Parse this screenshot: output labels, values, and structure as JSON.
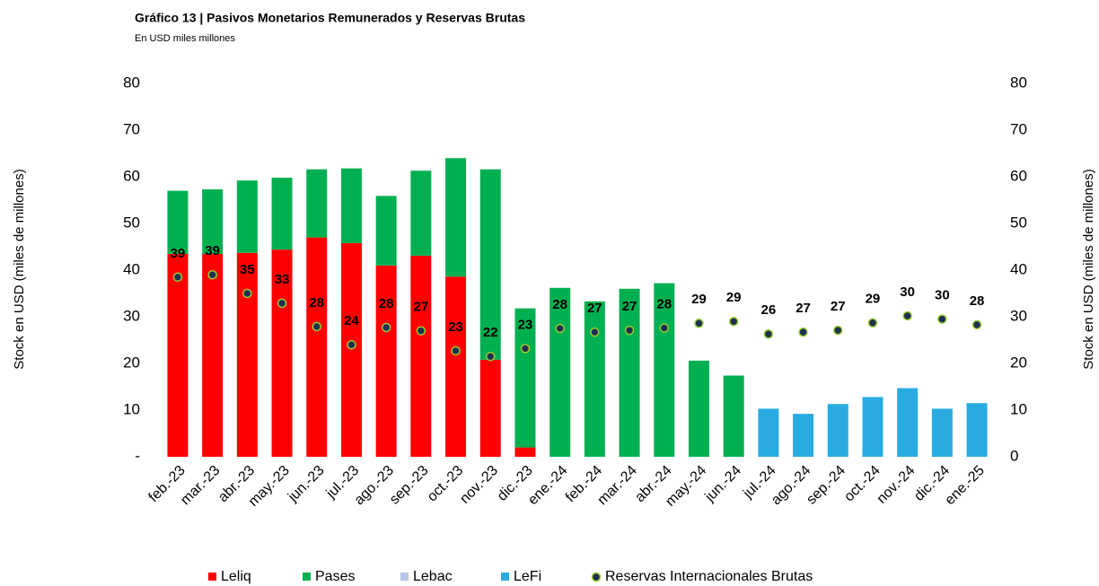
{
  "chart_data": {
    "type": "bar",
    "stacked": true,
    "title": "Gráfico 13 | Pasivos Monetarios Remunerados y Reservas Brutas",
    "subtitle": "En USD miles millones",
    "ylabel": "Stock en USD (miles de millones)",
    "y2label": "Stock en USD (miles de millones)",
    "categories": [
      "feb.-23",
      "mar.-23",
      "abr.-23",
      "may.-23",
      "jun.-23",
      "jul.-23",
      "ago.-23",
      "sep.-23",
      "oct.-23",
      "nov.-23",
      "dic.-23",
      "ene.-24",
      "feb.-24",
      "mar.-24",
      "abr.-24",
      "may.-24",
      "jun.-24",
      "jul.-24",
      "ago.-24",
      "sep.-24",
      "oct.-24",
      "nov.-24",
      "dic.-24",
      "ene.-25"
    ],
    "ylim": [
      0,
      80
    ],
    "yticks": [
      {
        "value": 0,
        "label": "-"
      },
      10,
      20,
      30,
      40,
      50,
      60,
      70,
      80
    ],
    "y2lim": [
      0,
      80
    ],
    "y2ticks": [
      0,
      10,
      20,
      30,
      40,
      50,
      60,
      70,
      80
    ],
    "grid": false,
    "legend": "bottom",
    "series": [
      {
        "name": "Leliq",
        "color": "#ff0000",
        "type": "bar",
        "values": [
          43.5,
          43.5,
          43.7,
          44.4,
          47,
          45.8,
          41,
          43.1,
          38.6,
          20.8,
          2,
          null,
          null,
          null,
          null,
          null,
          null,
          null,
          null,
          null,
          null,
          null,
          null,
          null
        ]
      },
      {
        "name": "Pases",
        "color": "#00b050",
        "type": "bar",
        "values": [
          13.5,
          13.8,
          15.5,
          15.4,
          14.6,
          16,
          14.9,
          18.2,
          25.4,
          40.8,
          29.8,
          36.2,
          33.3,
          36,
          37.2,
          20.6,
          17.4,
          null,
          null,
          null,
          null,
          null,
          null,
          null
        ]
      },
      {
        "name": "Lebac",
        "color": "#b4c7e7",
        "type": "bar",
        "values": [
          null,
          null,
          null,
          null,
          null,
          null,
          null,
          null,
          null,
          null,
          null,
          null,
          null,
          null,
          null,
          null,
          null,
          null,
          null,
          null,
          null,
          null,
          null,
          null
        ]
      },
      {
        "name": "LeFi",
        "color": "#29abe2",
        "type": "bar",
        "values": [
          null,
          null,
          null,
          null,
          null,
          null,
          null,
          null,
          null,
          null,
          null,
          null,
          null,
          null,
          null,
          null,
          null,
          10.3,
          9.2,
          11.3,
          12.8,
          14.7,
          10.3,
          11.5
        ]
      },
      {
        "name": "Reservas Internacionales Brutas",
        "color": "#1f3050",
        "type": "scatter",
        "axis": "y2",
        "values": [
          38.5,
          39,
          35,
          32.9,
          27.9,
          24,
          27.7,
          27,
          22.7,
          21.5,
          23.2,
          27.5,
          26.7,
          27.1,
          27.6,
          28.6,
          29,
          26.3,
          26.7,
          27.1,
          28.7,
          30.2,
          29.5,
          28.3
        ],
        "value_labels": [
          39,
          39,
          35,
          33,
          28,
          24,
          28,
          27,
          23,
          22,
          23,
          28,
          27,
          27,
          28,
          29,
          29,
          26,
          27,
          27,
          29,
          30,
          30,
          28
        ]
      }
    ]
  }
}
